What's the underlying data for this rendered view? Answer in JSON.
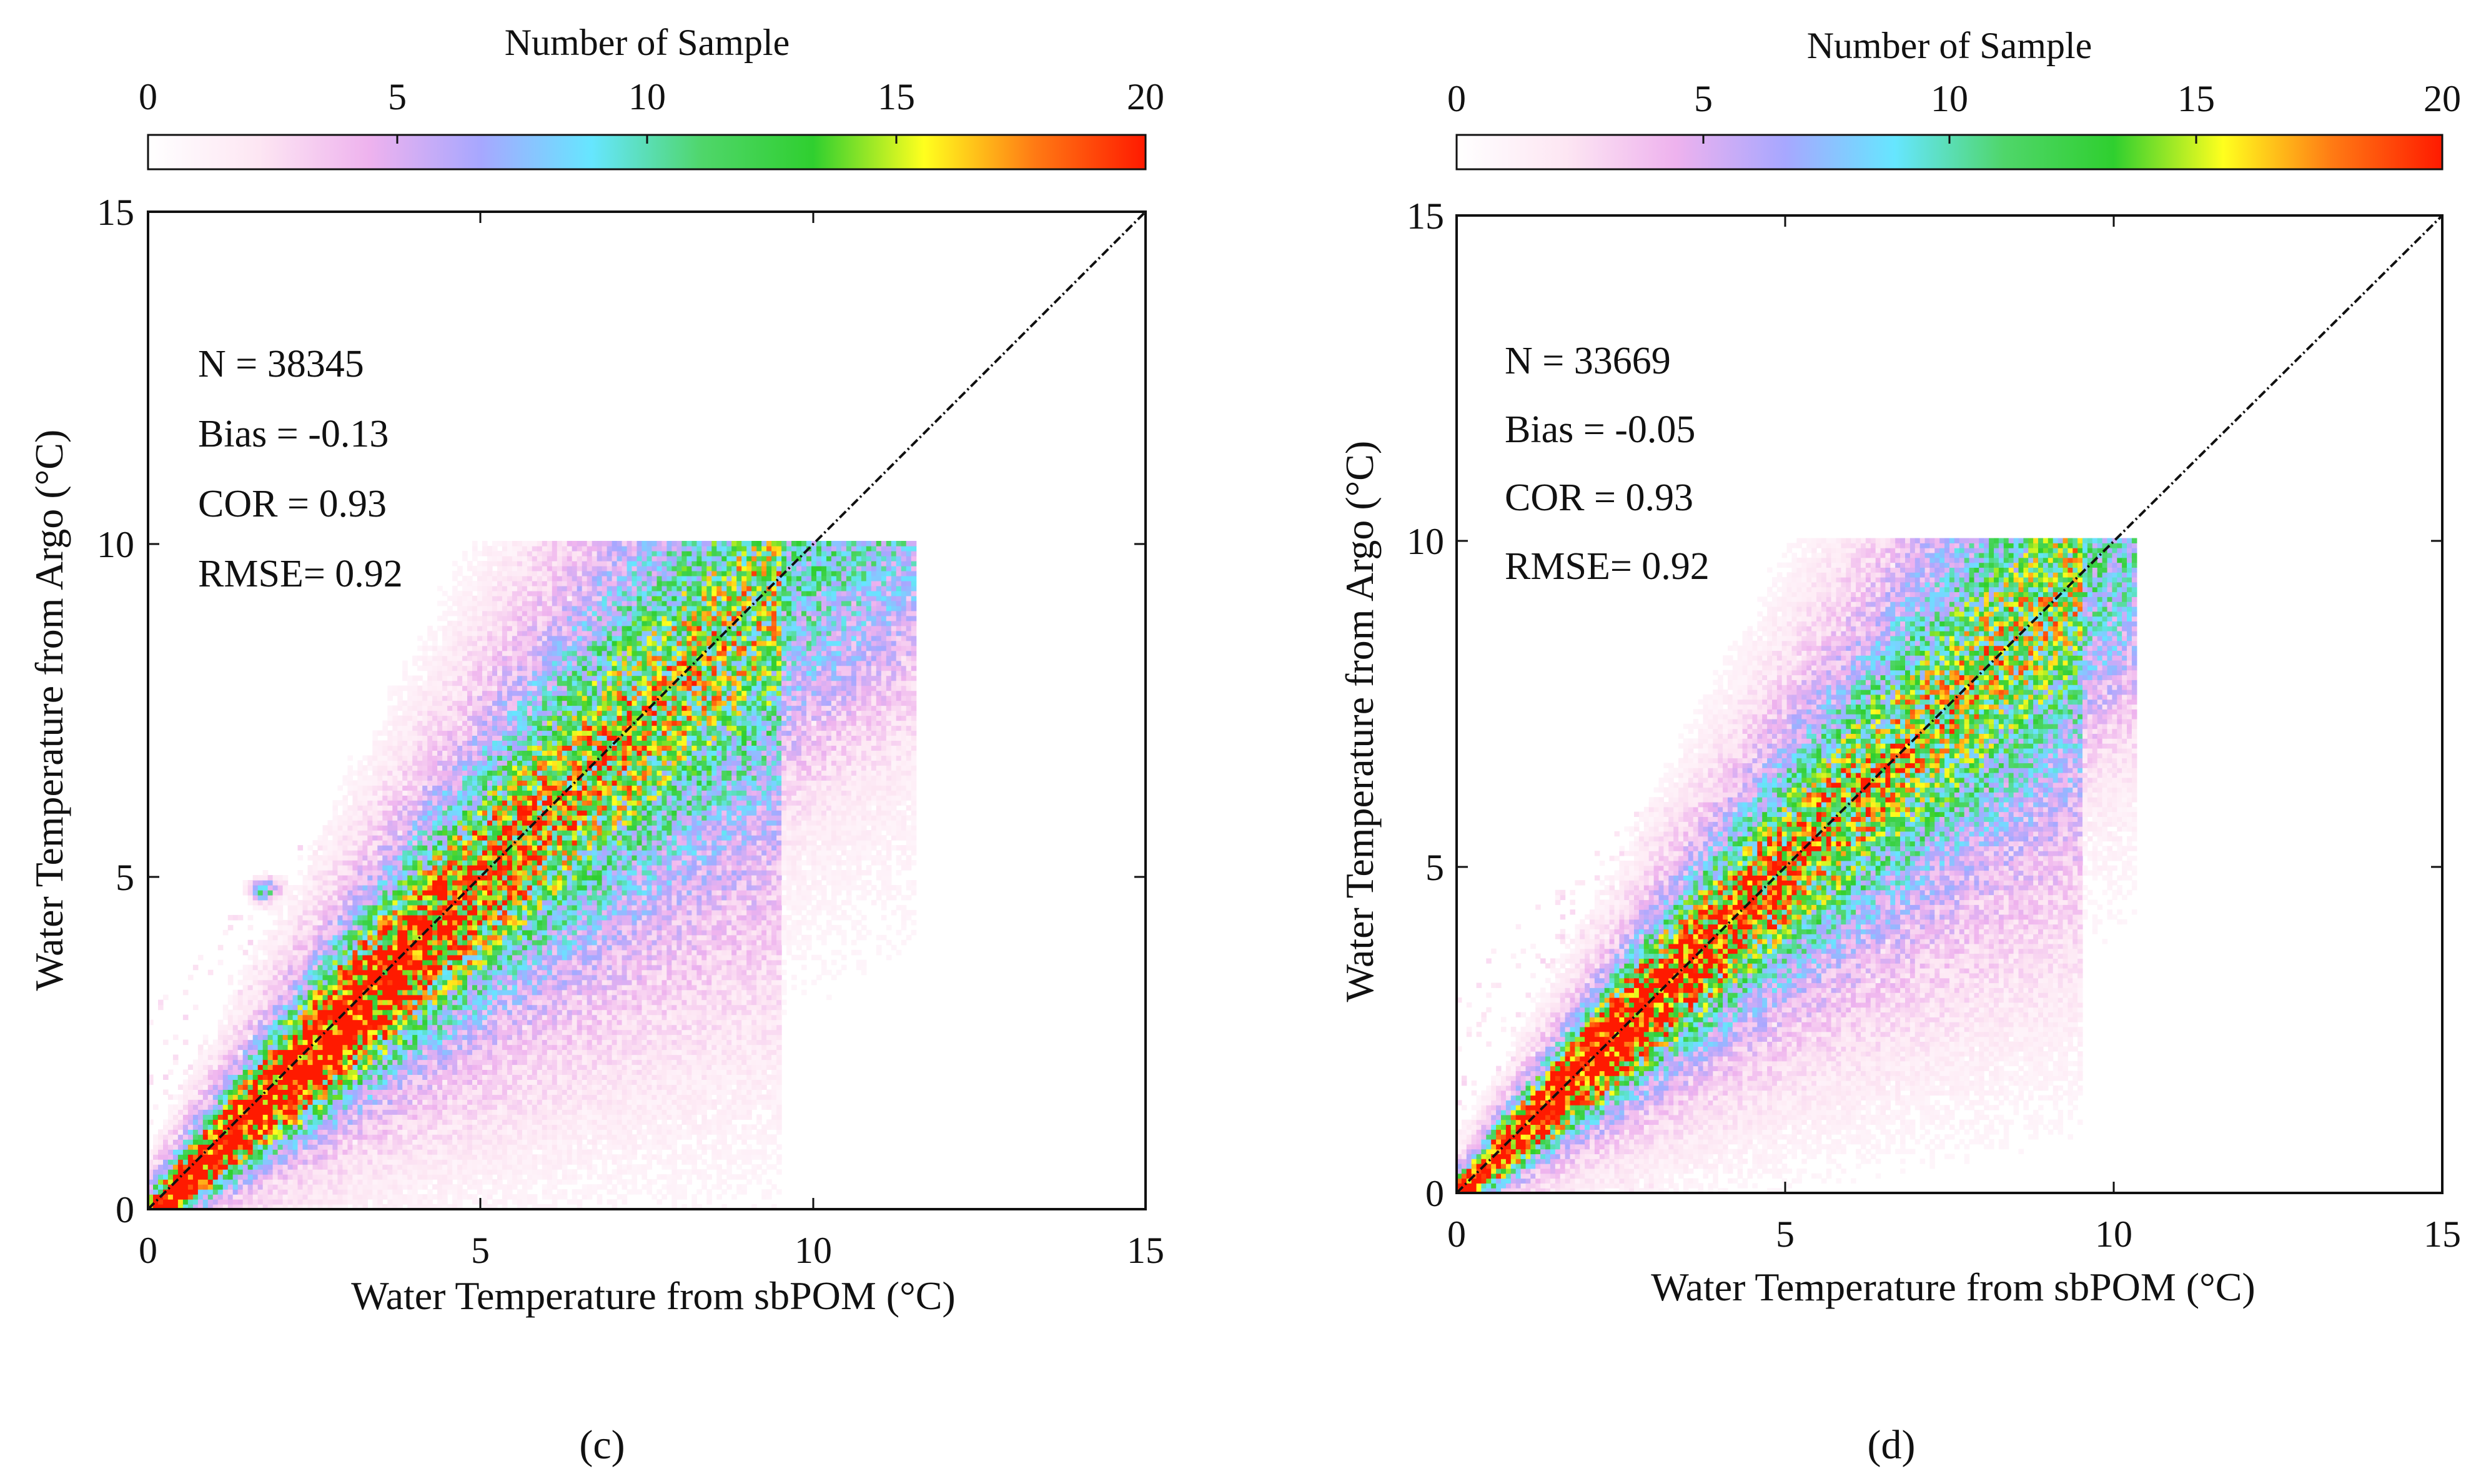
{
  "chart_data": [
    {
      "type": "heatmap",
      "panel_label": "(c)",
      "colorbar": {
        "title": "Number of Sample",
        "ticks": [
          0,
          5,
          10,
          15,
          20
        ],
        "range": [
          0,
          20
        ]
      },
      "xlabel": "Water Temperature from sbPOM (°C)",
      "ylabel": "Water Temperature from Argo (°C)",
      "xlim": [
        0,
        15
      ],
      "ylim": [
        0,
        15
      ],
      "xticks": [
        0,
        5,
        10,
        15
      ],
      "yticks": [
        0,
        5,
        10,
        15
      ],
      "reference_line": "y = x",
      "stats": {
        "n": "N = 38345",
        "bias": "Bias = -0.13",
        "cor": "COR = 0.93",
        "rmse": "RMSE= 0.92"
      },
      "density": {
        "center_offset": -0.13,
        "spread_base": 0.18,
        "spread_slope": 0.055,
        "core_until": 2.9,
        "x_extent": 11.5,
        "outlier_cluster": [
          1.75,
          4.8
        ]
      }
    },
    {
      "type": "heatmap",
      "panel_label": "(d)",
      "colorbar": {
        "title": "Number of Sample",
        "ticks": [
          0,
          5,
          10,
          15,
          20
        ],
        "range": [
          0,
          20
        ]
      },
      "xlabel": "Water Temperature from sbPOM (°C)",
      "ylabel": "Water Temperature from Argo (°C)",
      "xlim": [
        0,
        15
      ],
      "ylim": [
        0,
        15
      ],
      "xticks": [
        0,
        5,
        10,
        15
      ],
      "yticks": [
        0,
        5,
        10,
        15
      ],
      "reference_line": "y = x",
      "stats": {
        "n": "N = 33669",
        "bias": "Bias = -0.05",
        "cor": "COR = 0.93",
        "rmse": "RMSE= 0.92"
      },
      "density": {
        "center_offset": -0.05,
        "spread_base": 0.16,
        "spread_slope": 0.05,
        "core_until": 2.5,
        "x_extent": 10.3,
        "outlier_cluster": null
      }
    }
  ],
  "colors": {
    "colormap": [
      "#ffffff",
      "#fde6f3",
      "#eeb2ee",
      "#a7a7ff",
      "#66e6ff",
      "#4fd66a",
      "#2fcf2f",
      "#ffff1e",
      "#ff7a14",
      "#ff1a00"
    ],
    "axis": "#111111",
    "reference_line": "#111111"
  }
}
